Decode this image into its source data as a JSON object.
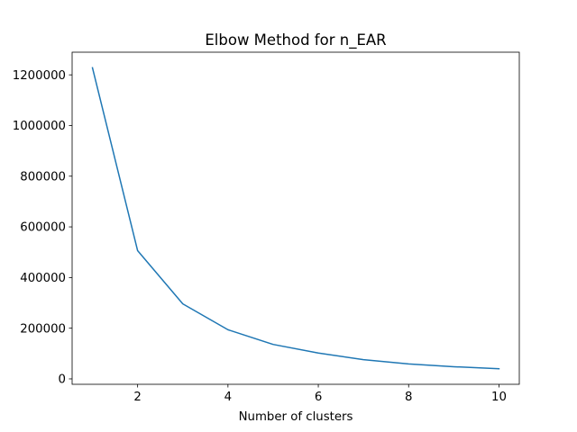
{
  "chart_data": {
    "type": "line",
    "title": "Elbow Method for n_EAR",
    "xlabel": "Number of clusters",
    "ylabel": "",
    "x": [
      1,
      2,
      3,
      4,
      5,
      6,
      7,
      8,
      9,
      10
    ],
    "series": [
      {
        "values": [
          1228000,
          506000,
          296000,
          194000,
          136000,
          102000,
          76000,
          59000,
          48000,
          40000
        ],
        "color": "#1f77b4"
      }
    ],
    "xlim": [
      0.55,
      10.45
    ],
    "ylim": [
      -21400,
      1289400
    ],
    "xticks": [
      2,
      4,
      6,
      8,
      10
    ],
    "xtick_labels": [
      "2",
      "4",
      "6",
      "8",
      "10"
    ],
    "yticks": [
      0,
      200000,
      400000,
      600000,
      800000,
      1000000,
      1200000
    ],
    "ytick_labels": [
      "0",
      "200000",
      "400000",
      "600000",
      "800000",
      "1000000",
      "1200000"
    ],
    "grid": false,
    "legend": "none"
  }
}
